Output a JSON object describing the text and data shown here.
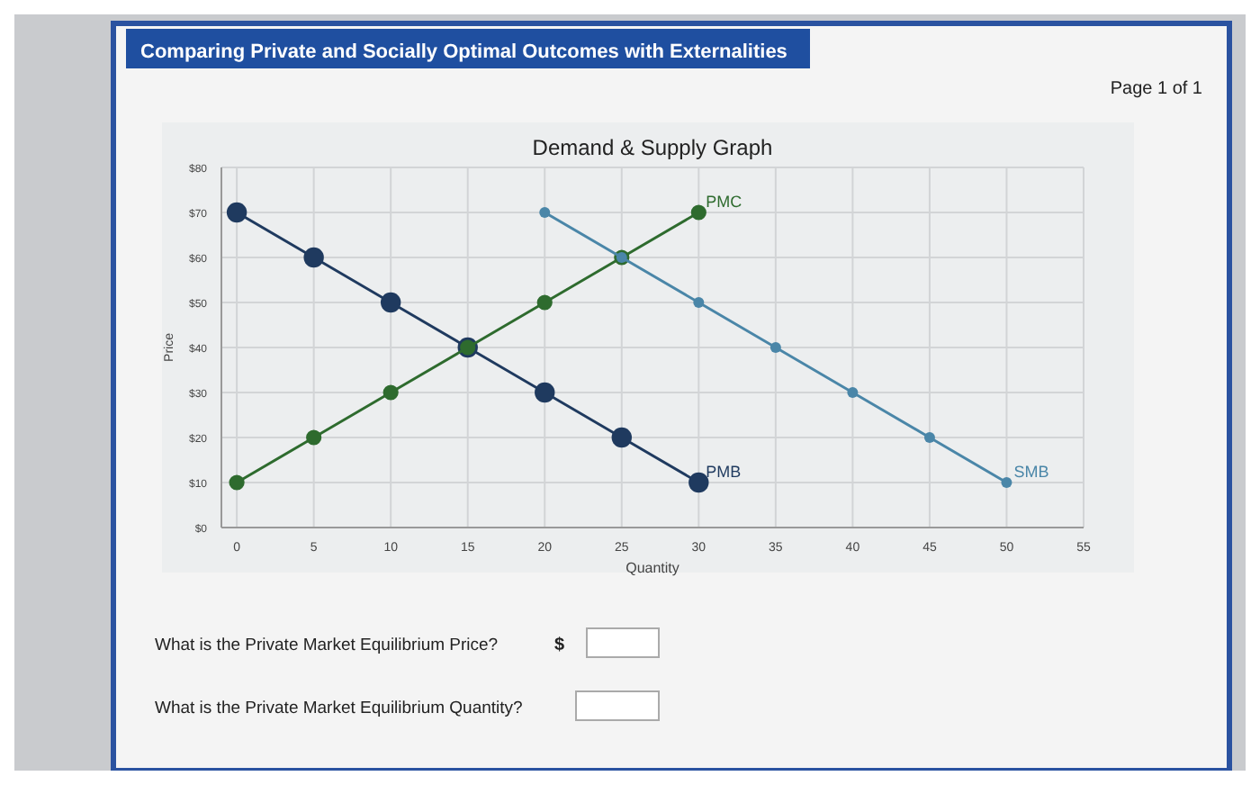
{
  "chart_data": {
    "type": "line",
    "title": "Demand & Supply Graph",
    "xlabel": "Quantity",
    "ylabel": "Price",
    "xlim": [
      -1,
      55
    ],
    "xticks": [
      0,
      5,
      10,
      15,
      20,
      25,
      30,
      35,
      40,
      45,
      50,
      55
    ],
    "ylim": [
      0,
      80
    ],
    "yticks": [
      {
        "value": 0,
        "label": "$0"
      },
      {
        "value": 10,
        "label": "$10"
      },
      {
        "value": 20,
        "label": "$20"
      },
      {
        "value": 30,
        "label": "$30"
      },
      {
        "value": 40,
        "label": "$40"
      },
      {
        "value": 50,
        "label": "$50"
      },
      {
        "value": 60,
        "label": "$60"
      },
      {
        "value": 70,
        "label": "$70"
      },
      {
        "value": 80,
        "label": "$80"
      }
    ],
    "grid": true,
    "marker": "circle",
    "series": [
      {
        "name": "PMB",
        "color": "#1f3a5f",
        "x": [
          0,
          5,
          10,
          15,
          20,
          25,
          30
        ],
        "values": [
          70,
          60,
          50,
          40,
          30,
          20,
          10
        ]
      },
      {
        "name": "PMC",
        "color": "#2e6b2e",
        "x": [
          0,
          5,
          10,
          15,
          20,
          25,
          30
        ],
        "values": [
          10,
          20,
          30,
          40,
          50,
          60,
          70
        ]
      },
      {
        "name": "SMB",
        "color": "#4a86a8",
        "x": [
          20,
          25,
          30,
          35,
          40,
          45,
          50
        ],
        "values": [
          70,
          60,
          50,
          40,
          30,
          20,
          10
        ]
      }
    ],
    "annotations": [
      "Comparing Private and Socially Optimal Outcomes with Externalities",
      "Page 1 of 1",
      "What is the Private Market Equilibrium Price?",
      "$",
      "What is the Private Market Equilibrium Quantity?"
    ]
  }
}
